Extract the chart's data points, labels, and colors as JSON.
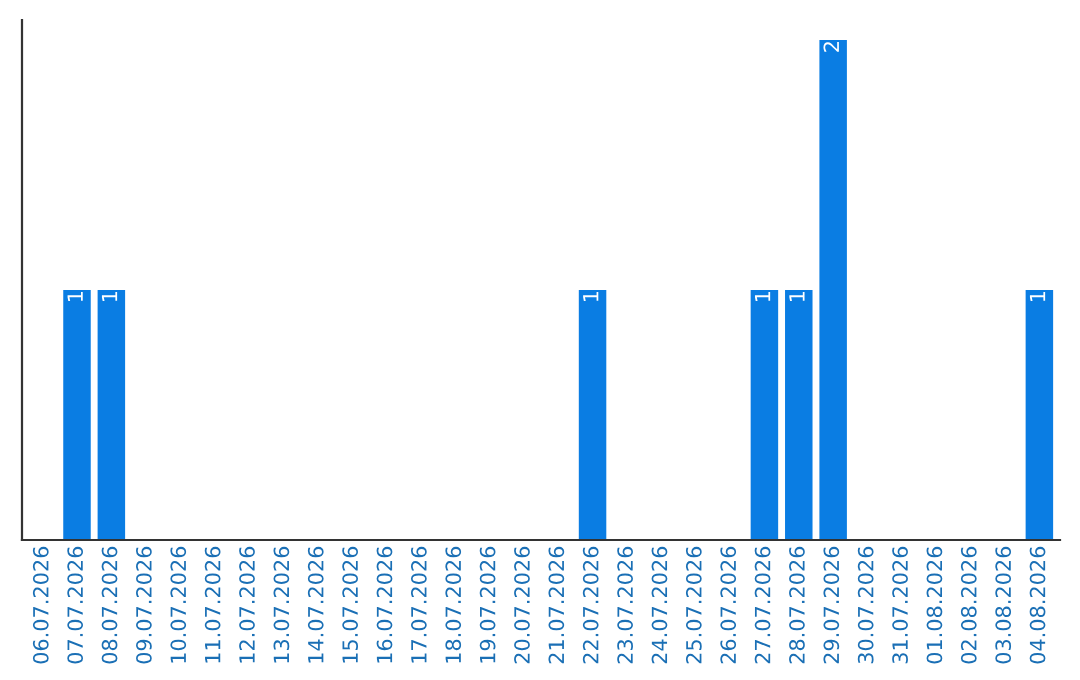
{
  "chart_data": {
    "type": "bar",
    "categories": [
      "06.07.2026",
      "07.07.2026",
      "08.07.2026",
      "09.07.2026",
      "10.07.2026",
      "11.07.2026",
      "12.07.2026",
      "13.07.2026",
      "14.07.2026",
      "15.07.2026",
      "16.07.2026",
      "17.07.2026",
      "18.07.2026",
      "19.07.2026",
      "20.07.2026",
      "21.07.2026",
      "22.07.2026",
      "23.07.2026",
      "24.07.2026",
      "25.07.2026",
      "26.07.2026",
      "27.07.2026",
      "28.07.2026",
      "29.07.2026",
      "30.07.2026",
      "31.07.2026",
      "01.08.2026",
      "02.08.2026",
      "03.08.2026",
      "04.08.2026"
    ],
    "values": [
      0,
      1,
      1,
      0,
      0,
      0,
      0,
      0,
      0,
      0,
      0,
      0,
      0,
      0,
      0,
      0,
      1,
      0,
      0,
      0,
      0,
      1,
      1,
      2,
      0,
      0,
      0,
      0,
      0,
      1
    ],
    "value_labels": [
      null,
      "1",
      "1",
      null,
      null,
      null,
      null,
      null,
      null,
      null,
      null,
      null,
      null,
      null,
      null,
      null,
      "1",
      null,
      null,
      null,
      null,
      "1",
      "1",
      "2",
      null,
      null,
      null,
      null,
      null,
      "1"
    ],
    "color": "#0a7de3",
    "relative": false,
    "grid": false,
    "legend": false
  }
}
